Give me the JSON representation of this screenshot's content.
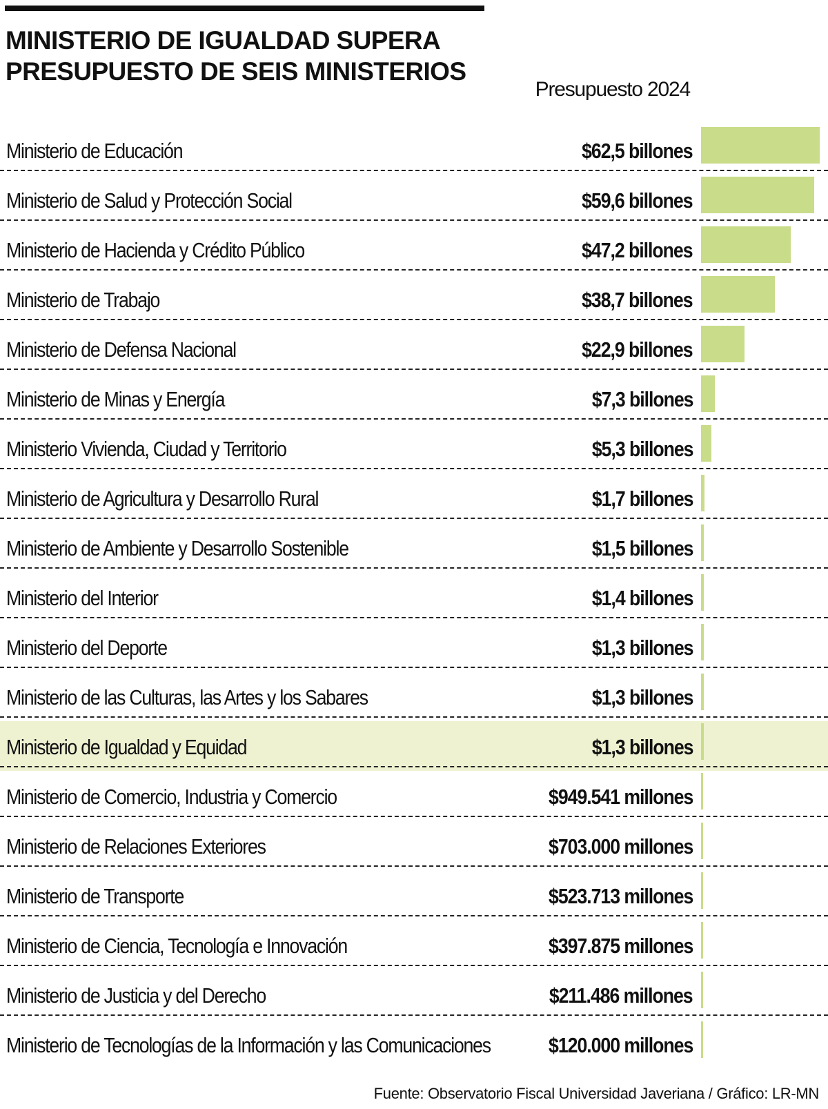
{
  "header": {
    "title": "MINISTERIO DE IGUALDAD SUPERA\nPRESUPUESTO DE SEIS MINISTERIOS",
    "column_label": "Presupuesto 2024"
  },
  "footer": {
    "source": "Fuente: Observatorio Fiscal Universidad Javeriana / Gráfico: LR-MN"
  },
  "colors": {
    "bar": "#c9dc89",
    "highlight_band": "#eef2d1",
    "text": "#111111"
  },
  "chart_data": {
    "type": "bar",
    "orientation": "horizontal",
    "title": "MINISTERIO DE IGUALDAD SUPERA PRESUPUESTO DE SEIS MINISTERIOS",
    "value_axis_label": "Presupuesto 2024",
    "unit": "billones de pesos",
    "highlighted_category": "Ministerio de Igualdad y Equidad",
    "categories": [
      "Ministerio de Educación",
      "Ministerio de Salud y Protección Social",
      "Ministerio de Hacienda y Crédito Público",
      "Ministerio de Trabajo",
      "Ministerio de Defensa Nacional",
      "Ministerio de Minas y Energía",
      "Ministerio Vivienda, Ciudad y Territorio",
      "Ministerio de Agricultura y Desarrollo Rural",
      "Ministerio de Ambiente y Desarrollo Sostenible",
      "Ministerio del Interior",
      "Ministerio del Deporte",
      "Ministerio de las Culturas, las Artes y los Sabares",
      "Ministerio de Igualdad y Equidad",
      "Ministerio de Comercio, Industria y Comercio",
      "Ministerio de Relaciones Exteriores",
      "Ministerio de Transporte",
      "Ministerio de Ciencia, Tecnología e Innovación",
      "Ministerio de Justicia y del Derecho",
      "Ministerio de Tecnologías de la Información y las Comunicaciones"
    ],
    "values": [
      62.5,
      59.6,
      47.2,
      38.7,
      22.9,
      7.3,
      5.3,
      1.7,
      1.5,
      1.4,
      1.3,
      1.3,
      1.3,
      0.949541,
      0.703,
      0.523713,
      0.397875,
      0.211486,
      0.12
    ],
    "value_labels": [
      "$62,5 billones",
      "$59,6 billones",
      "$47,2 billones",
      "$38,7 billones",
      "$22,9 billones",
      "$7,3 billones",
      "$5,3 billones",
      "$1,7 billones",
      "$1,5 billones",
      "$1,4 billones",
      "$1,3 billones",
      "$1,3 billones",
      "$1,3 billones",
      "$949.541 millones",
      "$703.000 millones",
      "$523.713 millones",
      "$397.875 millones",
      "$211.486 millones",
      "$120.000 millones"
    ],
    "xlim": [
      0,
      62.5
    ],
    "grid": false,
    "legend": "none"
  }
}
